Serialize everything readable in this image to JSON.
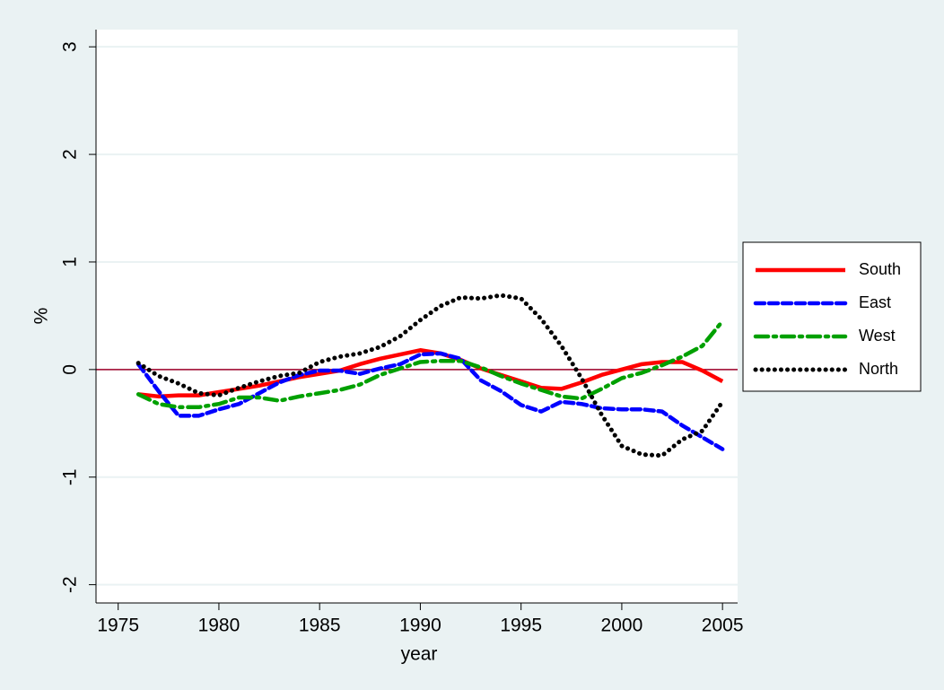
{
  "chart_data": {
    "type": "line",
    "x_label": "year",
    "y_label": "%",
    "x": [
      1976,
      1977,
      1978,
      1979,
      1980,
      1981,
      1982,
      1983,
      1984,
      1985,
      1986,
      1987,
      1988,
      1989,
      1990,
      1991,
      1992,
      1993,
      1994,
      1995,
      1996,
      1997,
      1998,
      1999,
      2000,
      2001,
      2002,
      2003,
      2004,
      2005
    ],
    "series": [
      {
        "name": "South",
        "color": "#ff0000",
        "style": "solid",
        "values": [
          -0.23,
          -0.25,
          -0.24,
          -0.24,
          -0.21,
          -0.18,
          -0.15,
          -0.11,
          -0.07,
          -0.04,
          -0.01,
          0.05,
          0.1,
          0.14,
          0.18,
          0.15,
          0.09,
          0.01,
          -0.05,
          -0.11,
          -0.17,
          -0.18,
          -0.12,
          -0.05,
          0.0,
          0.05,
          0.07,
          0.07,
          -0.01,
          -0.11
        ]
      },
      {
        "name": "East",
        "color": "#0000ff",
        "style": "dash",
        "values": [
          0.05,
          -0.2,
          -0.43,
          -0.43,
          -0.37,
          -0.32,
          -0.22,
          -0.12,
          -0.05,
          -0.01,
          -0.01,
          -0.04,
          0.01,
          0.05,
          0.14,
          0.15,
          0.1,
          -0.1,
          -0.2,
          -0.33,
          -0.39,
          -0.3,
          -0.32,
          -0.36,
          -0.37,
          -0.37,
          -0.39,
          -0.52,
          -0.63,
          -0.74
        ]
      },
      {
        "name": "West",
        "color": "#00a000",
        "style": "dashdot",
        "values": [
          -0.23,
          -0.32,
          -0.35,
          -0.35,
          -0.32,
          -0.26,
          -0.26,
          -0.29,
          -0.25,
          -0.22,
          -0.19,
          -0.14,
          -0.05,
          0.01,
          0.07,
          0.08,
          0.08,
          0.02,
          -0.06,
          -0.13,
          -0.19,
          -0.25,
          -0.27,
          -0.18,
          -0.08,
          -0.03,
          0.04,
          0.12,
          0.22,
          0.45
        ]
      },
      {
        "name": "North",
        "color": "#000000",
        "style": "dot",
        "values": [
          0.06,
          -0.06,
          -0.13,
          -0.22,
          -0.24,
          -0.17,
          -0.11,
          -0.06,
          -0.03,
          0.07,
          0.12,
          0.15,
          0.21,
          0.31,
          0.46,
          0.59,
          0.67,
          0.66,
          0.69,
          0.66,
          0.47,
          0.22,
          -0.08,
          -0.42,
          -0.71,
          -0.79,
          -0.8,
          -0.65,
          -0.57,
          -0.3
        ]
      }
    ],
    "reference_line": {
      "value": 0,
      "color": "#a0002a"
    },
    "xlim": [
      1973.9,
      2005.75
    ],
    "xticks": [
      1975,
      1980,
      1985,
      1990,
      1995,
      2000,
      2005
    ],
    "ylim": [
      -2.17,
      3.16
    ],
    "yticks": [
      -2,
      -1,
      0,
      1,
      2,
      3
    ],
    "grid": true,
    "legend": "right"
  }
}
